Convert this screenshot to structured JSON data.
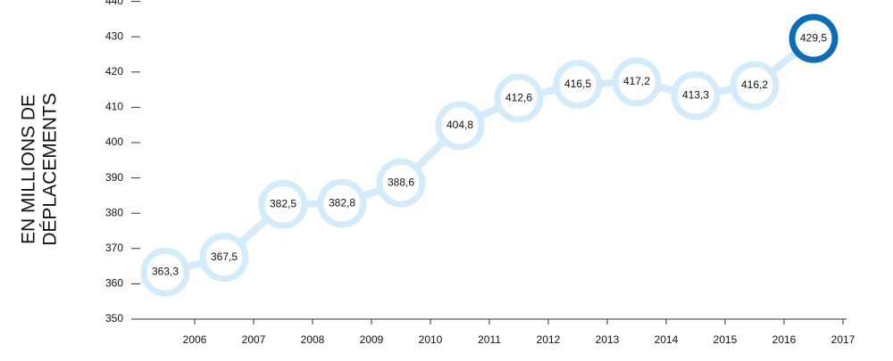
{
  "chart_data": {
    "type": "line",
    "y_label": [
      "EN MILLIONS DE",
      "DÉPLACEMENTS"
    ],
    "categories": [
      "2006",
      "2007",
      "2008",
      "2009",
      "2010",
      "2011",
      "2012",
      "2013",
      "2014",
      "2015",
      "2016",
      "2017"
    ],
    "values": [
      363.3,
      367.5,
      382.5,
      382.8,
      388.6,
      404.8,
      412.6,
      416.5,
      417.2,
      413.3,
      416.2,
      429.5
    ],
    "value_labels": [
      "363,3",
      "367,5",
      "382,5",
      "382,8",
      "388,6",
      "404,8",
      "412,6",
      "416,5",
      "417,2",
      "413,3",
      "416,2",
      "429,5"
    ],
    "color": "#d3ebfa",
    "point_colors": [
      "#d3ebfa",
      "#d3ebfa",
      "#d3ebfa",
      "#d3ebfa",
      "#d3ebfa",
      "#d3ebfa",
      "#d3ebfa",
      "#d3ebfa",
      "#d3ebfa",
      "#d3ebfa",
      "#d3ebfa",
      "#0a6db5"
    ],
    "ylim": [
      350,
      440
    ],
    "yticks": [
      350,
      360,
      370,
      380,
      390,
      400,
      410,
      420,
      430,
      440
    ]
  }
}
